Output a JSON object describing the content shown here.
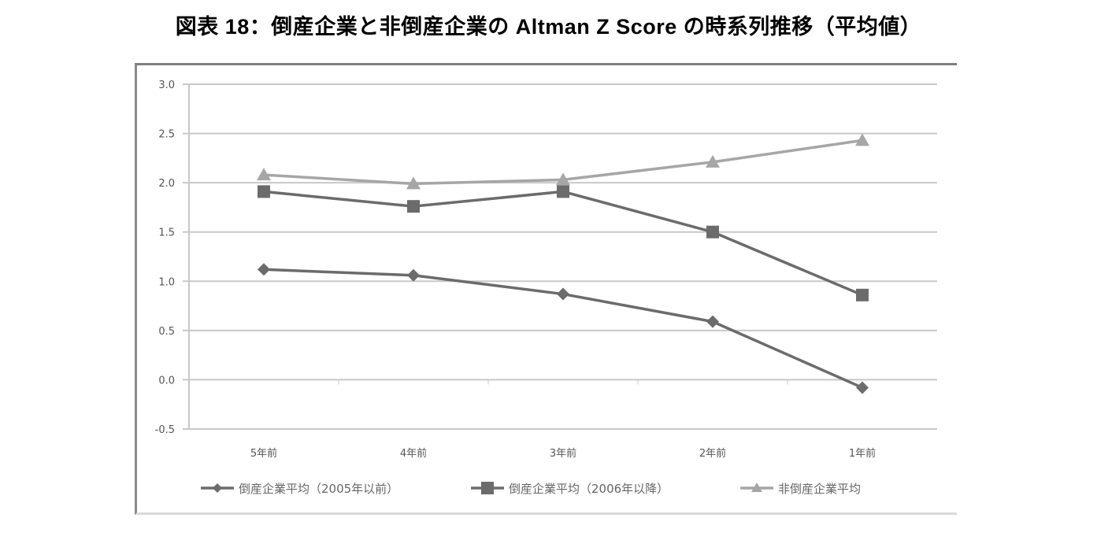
{
  "title": "図表 18：倒産企業と非倒産企業の Altman Z Score の時系列推移（平均値）",
  "chart_data": {
    "type": "line",
    "title": "図表 18：倒産企業と非倒産企業の Altman Z Score の時系列推移（平均値）",
    "xlabel": "",
    "ylabel": "",
    "categories": [
      "5年前",
      "4年前",
      "3年前",
      "2年前",
      "1年前"
    ],
    "yticks": [
      "3.0",
      "2.5",
      "2.0",
      "1.5",
      "1.0",
      "0.5",
      "0.0",
      "-0.5"
    ],
    "ylim": [
      -0.5,
      3.0
    ],
    "grid": true,
    "legend_position": "bottom",
    "series": [
      {
        "name": "倒産企業平均（2005年以前）",
        "marker": "diamond",
        "color": "#6b6b6b",
        "values": [
          1.12,
          1.06,
          0.87,
          0.59,
          -0.08
        ]
      },
      {
        "name": "倒産企業平均（2006年以降）",
        "marker": "square",
        "color": "#6b6b6b",
        "values": [
          1.91,
          1.76,
          1.91,
          1.5,
          0.86
        ]
      },
      {
        "name": "非倒産企業平均",
        "marker": "triangle",
        "color": "#a6a6a6",
        "values": [
          2.08,
          1.99,
          2.03,
          2.21,
          2.43
        ]
      }
    ]
  }
}
